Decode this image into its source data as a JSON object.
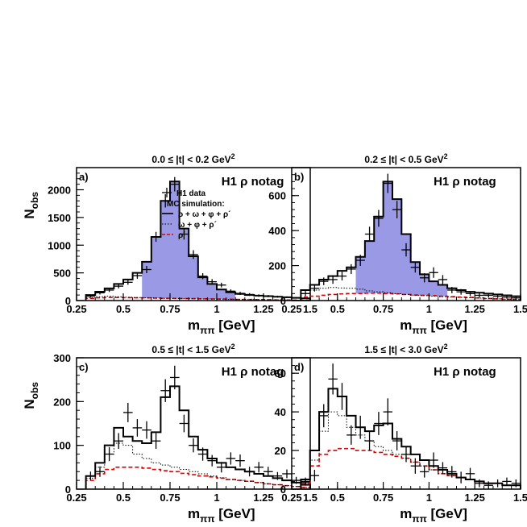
{
  "colors": {
    "shade": "#9999e6",
    "red": "#e00000",
    "black": "#000000"
  },
  "chart_data": [
    {
      "type": "histogram",
      "letter": "a)",
      "title": "0.0 ≤ |t| < 0.2 GeV",
      "title_sup": "2",
      "tag": "H1 ρ notag",
      "xlabel": "m",
      "xlabel_sub": "ππ",
      "xlabel_unit": " [GeV]",
      "ylabel": "N",
      "ylabel_sub": "obs",
      "xlim": [
        0.25,
        1.5
      ],
      "ylim": [
        0,
        2400
      ],
      "xticks": [
        0.25,
        0.5,
        0.75,
        1,
        1.25,
        1.5
      ],
      "xtick_labels": [
        "0.25",
        "0.5",
        "0.75",
        "1",
        "1.25",
        "1.5"
      ],
      "yticks": [
        0,
        500,
        1000,
        1500,
        2000
      ],
      "ytick_labels": [
        "0",
        "500",
        "1000",
        "1500",
        "2000"
      ],
      "bin_edges": [
        0.3,
        0.35,
        0.4,
        0.45,
        0.5,
        0.55,
        0.6,
        0.65,
        0.7,
        0.75,
        0.8,
        0.85,
        0.9,
        0.95,
        1.0,
        1.05,
        1.1,
        1.15,
        1.2,
        1.25,
        1.3,
        1.35,
        1.4,
        1.45,
        1.5
      ],
      "shaded_range": [
        0.6,
        1.1
      ],
      "total_mc": [
        100,
        160,
        220,
        300,
        380,
        500,
        700,
        1150,
        1800,
        2150,
        1300,
        800,
        420,
        300,
        200,
        150,
        120,
        100,
        90,
        80,
        70,
        60,
        50,
        40
      ],
      "omega_phi_rho": [
        50,
        70,
        80,
        70,
        60,
        55,
        50,
        45,
        40,
        38,
        35,
        32,
        30,
        28,
        25,
        22,
        20,
        18,
        16,
        14,
        12,
        10,
        8,
        6
      ],
      "rho_prime": [
        40,
        50,
        55,
        55,
        52,
        50,
        48,
        45,
        42,
        40,
        38,
        35,
        32,
        30,
        28,
        25,
        22,
        20,
        18,
        15,
        12,
        10,
        8,
        6
      ],
      "data": {
        "x": [
          0.325,
          0.375,
          0.425,
          0.475,
          0.525,
          0.575,
          0.625,
          0.675,
          0.725,
          0.775,
          0.825,
          0.875,
          0.925,
          0.975,
          1.025,
          1.075,
          1.125,
          1.175,
          1.225,
          1.275,
          1.325,
          1.375,
          1.425,
          1.475
        ],
        "y": [
          80,
          140,
          190,
          260,
          330,
          450,
          560,
          1150,
          1800,
          2100,
          1200,
          830,
          440,
          340,
          280,
          170,
          130,
          110,
          90,
          80,
          70,
          60,
          50,
          40
        ],
        "yerr": [
          25,
          30,
          35,
          40,
          45,
          55,
          65,
          90,
          120,
          130,
          100,
          80,
          55,
          48,
          42,
          32,
          28,
          25,
          22,
          20,
          18,
          16,
          14,
          12
        ]
      },
      "legend": {
        "data_label": "H1 data",
        "mc_header": "MC simulation:",
        "total_label": "ρ + ω + φ + ρ´",
        "dotted_label": "ω + φ + ρ´",
        "red_label": "ρ´"
      }
    },
    {
      "type": "histogram",
      "letter": "b)",
      "title": "0.2 ≤ |t| < 0.5 GeV",
      "title_sup": "2",
      "tag": "H1 ρ notag",
      "xlabel": "m",
      "xlabel_sub": "ππ",
      "xlabel_unit": " [GeV]",
      "ylabel": "",
      "ylabel_sub": "",
      "xlim": [
        0.25,
        1.5
      ],
      "ylim": [
        0,
        760
      ],
      "xticks": [
        0.25,
        0.5,
        0.75,
        1,
        1.25,
        1.5
      ],
      "xtick_labels": [
        "0.25",
        "0.5",
        "0.75",
        "1",
        "1.25",
        "1.5"
      ],
      "yticks": [
        0,
        200,
        400,
        600
      ],
      "ytick_labels": [
        "0",
        "200",
        "400",
        "600"
      ],
      "bin_edges": [
        0.3,
        0.35,
        0.4,
        0.45,
        0.5,
        0.55,
        0.6,
        0.65,
        0.7,
        0.75,
        0.8,
        0.85,
        0.9,
        0.95,
        1.0,
        1.05,
        1.1,
        1.15,
        1.2,
        1.25,
        1.3,
        1.35,
        1.4,
        1.45,
        1.5
      ],
      "shaded_range": [
        0.6,
        1.1
      ],
      "total_mc": [
        60,
        90,
        120,
        140,
        170,
        190,
        250,
        340,
        480,
        680,
        580,
        380,
        220,
        150,
        110,
        90,
        70,
        60,
        50,
        45,
        40,
        35,
        30,
        25
      ],
      "omega_phi_rho": [
        40,
        60,
        70,
        75,
        72,
        70,
        65,
        55,
        50,
        45,
        40,
        35,
        30,
        28,
        25,
        22,
        20,
        18,
        16,
        14,
        12,
        10,
        8,
        6
      ],
      "rho_prime": [
        20,
        25,
        30,
        35,
        38,
        40,
        40,
        42,
        42,
        40,
        38,
        35,
        32,
        30,
        28,
        25,
        22,
        20,
        18,
        15,
        12,
        10,
        8,
        6
      ],
      "data": {
        "x": [
          0.325,
          0.375,
          0.425,
          0.475,
          0.525,
          0.575,
          0.625,
          0.675,
          0.725,
          0.775,
          0.825,
          0.875,
          0.925,
          0.975,
          1.025,
          1.075,
          1.125,
          1.175,
          1.225,
          1.275,
          1.325,
          1.375,
          1.425,
          1.475
        ],
        "y": [
          40,
          70,
          110,
          120,
          140,
          180,
          230,
          380,
          470,
          670,
          520,
          290,
          190,
          130,
          160,
          120,
          60,
          50,
          40,
          30,
          30,
          25,
          20,
          15
        ],
        "yerr": [
          15,
          18,
          22,
          24,
          25,
          28,
          32,
          42,
          48,
          55,
          50,
          38,
          30,
          26,
          30,
          26,
          18,
          16,
          14,
          12,
          12,
          10,
          9,
          8
        ]
      },
      "legend": null
    },
    {
      "type": "histogram",
      "letter": "c)",
      "title": "0.5 ≤ |t| < 1.5 GeV",
      "title_sup": "2",
      "tag": "H1 ρ notag",
      "xlabel": "m",
      "xlabel_sub": "ππ",
      "xlabel_unit": " [GeV]",
      "ylabel": "N",
      "ylabel_sub": "obs",
      "xlim": [
        0.25,
        1.5
      ],
      "ylim": [
        0,
        300
      ],
      "xticks": [
        0.25,
        0.5,
        0.75,
        1,
        1.25,
        1.5
      ],
      "xtick_labels": [
        "0.25",
        "0.5",
        "0.75",
        "1",
        "1.25",
        "1.5"
      ],
      "yticks": [
        0,
        100,
        200,
        300
      ],
      "ytick_labels": [
        "0",
        "100",
        "200",
        "300"
      ],
      "bin_edges": [
        0.3,
        0.35,
        0.4,
        0.45,
        0.5,
        0.55,
        0.6,
        0.65,
        0.7,
        0.75,
        0.8,
        0.85,
        0.9,
        0.95,
        1.0,
        1.05,
        1.1,
        1.15,
        1.2,
        1.25,
        1.3,
        1.35,
        1.4,
        1.45,
        1.5
      ],
      "shaded_range": null,
      "total_mc": [
        30,
        60,
        100,
        140,
        120,
        110,
        105,
        130,
        210,
        235,
        180,
        120,
        90,
        70,
        60,
        50,
        45,
        40,
        35,
        30,
        25,
        20,
        15,
        10
      ],
      "omega_phi_rho": [
        25,
        50,
        80,
        105,
        100,
        80,
        70,
        60,
        55,
        50,
        45,
        40,
        35,
        30,
        26,
        22,
        20,
        18,
        15,
        12,
        10,
        8,
        6,
        4
      ],
      "rho_prime": [
        20,
        35,
        45,
        50,
        50,
        50,
        48,
        45,
        42,
        40,
        36,
        33,
        30,
        28,
        25,
        22,
        20,
        18,
        15,
        12,
        10,
        8,
        6,
        4
      ],
      "data": {
        "x": [
          0.325,
          0.375,
          0.425,
          0.475,
          0.525,
          0.575,
          0.625,
          0.675,
          0.725,
          0.775,
          0.825,
          0.875,
          0.925,
          0.975,
          1.025,
          1.075,
          1.125,
          1.175,
          1.225,
          1.275,
          1.325,
          1.375,
          1.425,
          1.475
        ],
        "y": [
          30,
          40,
          80,
          110,
          175,
          140,
          135,
          110,
          225,
          255,
          150,
          100,
          80,
          65,
          50,
          70,
          65,
          40,
          50,
          40,
          30,
          35,
          20,
          15
        ],
        "yerr": [
          10,
          12,
          16,
          18,
          22,
          20,
          20,
          18,
          26,
          27,
          20,
          16,
          15,
          13,
          12,
          14,
          14,
          11,
          12,
          11,
          9,
          10,
          8,
          7
        ]
      },
      "legend": null
    },
    {
      "type": "histogram",
      "letter": "d)",
      "title": "1.5 ≤ |t| < 3.0 GeV",
      "title_sup": "2",
      "tag": "H1 ρ notag",
      "xlabel": "m",
      "xlabel_sub": "ππ",
      "xlabel_unit": " [GeV]",
      "ylabel": "",
      "ylabel_sub": "",
      "xlim": [
        0.25,
        1.5
      ],
      "ylim": [
        0,
        68
      ],
      "xticks": [
        0.25,
        0.5,
        0.75,
        1,
        1.25,
        1.5
      ],
      "xtick_labels": [
        "0.25",
        "0.5",
        "0.75",
        "1",
        "1.25",
        "1.5"
      ],
      "yticks": [
        0,
        20,
        40,
        60
      ],
      "ytick_labels": [
        "0",
        "20",
        "40",
        "60"
      ],
      "bin_edges": [
        0.3,
        0.35,
        0.4,
        0.45,
        0.5,
        0.55,
        0.6,
        0.65,
        0.7,
        0.75,
        0.8,
        0.85,
        0.9,
        0.95,
        1.0,
        1.05,
        1.1,
        1.15,
        1.2,
        1.25,
        1.3,
        1.35,
        1.4,
        1.45,
        1.5
      ],
      "shaded_range": null,
      "total_mc": [
        5,
        20,
        40,
        52,
        48,
        38,
        32,
        30,
        33,
        34,
        26,
        22,
        18,
        15,
        12,
        10,
        8,
        6,
        5,
        4,
        3,
        3,
        2,
        2
      ],
      "omega_phi_rho": [
        4,
        15,
        30,
        40,
        38,
        32,
        28,
        25,
        22,
        20,
        18,
        16,
        14,
        12,
        10,
        8,
        7,
        6,
        5,
        4,
        3,
        3,
        2,
        2
      ],
      "rho_prime": [
        3,
        12,
        18,
        20,
        21,
        21,
        20,
        20,
        19,
        18,
        17,
        16,
        14,
        12,
        10,
        8,
        7,
        6,
        5,
        4,
        3,
        3,
        2,
        2
      ],
      "data": {
        "x": [
          0.325,
          0.375,
          0.425,
          0.475,
          0.525,
          0.575,
          0.625,
          0.675,
          0.725,
          0.775,
          0.825,
          0.875,
          0.925,
          0.975,
          1.025,
          1.075,
          1.125,
          1.175,
          1.225,
          1.275,
          1.325,
          1.375,
          1.425,
          1.475
        ],
        "y": [
          4,
          7,
          38,
          57,
          48,
          28,
          32,
          25,
          34,
          40,
          25,
          18,
          12,
          9,
          15,
          11,
          9,
          6,
          8,
          3,
          2,
          3,
          4,
          3
        ],
        "yerr": [
          2,
          3,
          6,
          8,
          7,
          5,
          6,
          5,
          6,
          7,
          5,
          4,
          4,
          3,
          4,
          3,
          3,
          3,
          3,
          2,
          2,
          2,
          2,
          2
        ]
      },
      "legend": null
    }
  ]
}
